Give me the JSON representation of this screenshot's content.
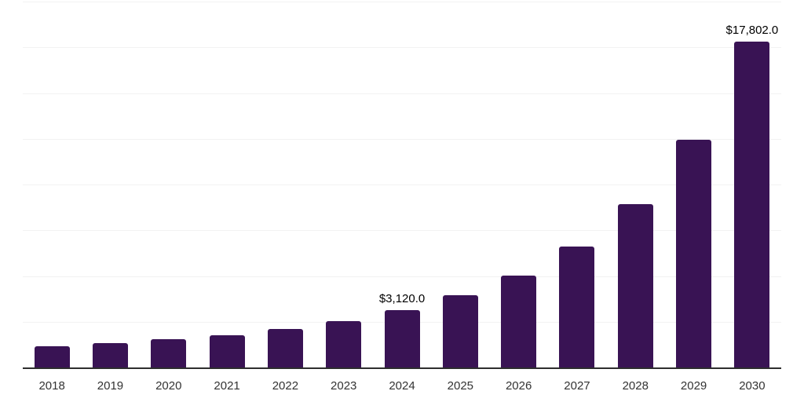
{
  "chart_data": {
    "type": "bar",
    "title": "",
    "xlabel": "",
    "ylabel": "",
    "categories": [
      "2018",
      "2019",
      "2020",
      "2021",
      "2022",
      "2023",
      "2024",
      "2025",
      "2026",
      "2027",
      "2028",
      "2029",
      "2030"
    ],
    "values": [
      1150,
      1320,
      1540,
      1750,
      2100,
      2550,
      3120,
      3930,
      5040,
      6620,
      8930,
      12440,
      17802
    ],
    "data_labels": {
      "2024": "$3,120.0",
      "2030": "$17,802.0"
    },
    "ylim": [
      0,
      20000
    ],
    "gridline_interval": 2500,
    "grid": true,
    "legend": false,
    "colors": {
      "bar": "#391354",
      "gridline": "#f2f2f2",
      "axis_line": "#2e2e2e",
      "data_label": "#000000",
      "tick_label": "#333333",
      "background": "#ffffff"
    }
  }
}
